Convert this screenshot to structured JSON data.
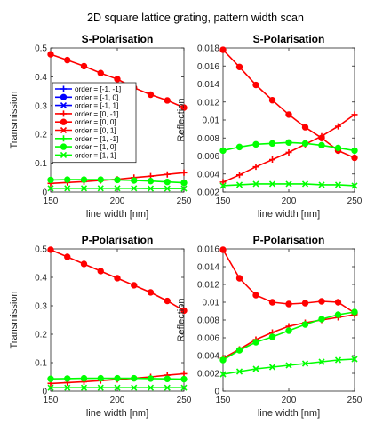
{
  "figure": {
    "suptitle": "2D square lattice grating, pattern width scan"
  },
  "legend": {
    "entries": [
      {
        "label": "order = [-1, -1]",
        "color": "#0000ff",
        "marker": "plus"
      },
      {
        "label": "order = [-1, 0]",
        "color": "#0000ff",
        "marker": "circle"
      },
      {
        "label": "order = [-1, 1]",
        "color": "#0000ff",
        "marker": "x"
      },
      {
        "label": "order = [0, -1]",
        "color": "#ff0000",
        "marker": "plus"
      },
      {
        "label": "order = [0, 0]",
        "color": "#ff0000",
        "marker": "circle"
      },
      {
        "label": "order = [0, 1]",
        "color": "#ff0000",
        "marker": "x"
      },
      {
        "label": "order = [1, -1]",
        "color": "#00ff00",
        "marker": "plus"
      },
      {
        "label": "order = [1, 0]",
        "color": "#00ff00",
        "marker": "circle"
      },
      {
        "label": "order = [1, 1]",
        "color": "#00ff00",
        "marker": "x"
      }
    ]
  },
  "chart_data": [
    {
      "type": "line",
      "title": "S-Polarisation",
      "xlabel": "line width [nm]",
      "ylabel": "Transmission",
      "xlim": [
        150,
        250
      ],
      "ylim": [
        0,
        0.5
      ],
      "xticks": [
        "150",
        "200",
        "250"
      ],
      "yticks": [
        "0",
        "0.1",
        "0.2",
        "0.3",
        "0.4",
        "0.5"
      ],
      "grid": false,
      "legend_position": "upper-left",
      "x": [
        150,
        162.5,
        175,
        187.5,
        200,
        212.5,
        225,
        237.5,
        250
      ],
      "series": [
        {
          "color": "#ff0000",
          "marker": "circle",
          "values": [
            0.478,
            0.458,
            0.437,
            0.413,
            0.392,
            0.362,
            0.338,
            0.318,
            0.293
          ]
        },
        {
          "color": "#ff0000",
          "marker": "plus",
          "values": [
            0.03,
            0.033,
            0.036,
            0.04,
            0.044,
            0.05,
            0.055,
            0.061,
            0.067
          ]
        },
        {
          "color": "#00ff00",
          "marker": "circle",
          "values": [
            0.042,
            0.043,
            0.043,
            0.043,
            0.042,
            0.04,
            0.038,
            0.035,
            0.032
          ]
        },
        {
          "color": "#00ff00",
          "marker": "x",
          "values": [
            0.013,
            0.013,
            0.013,
            0.013,
            0.013,
            0.013,
            0.012,
            0.012,
            0.012
          ]
        }
      ]
    },
    {
      "type": "line",
      "title": "S-Polarisation",
      "xlabel": "line width [nm]",
      "ylabel": "Reflection",
      "xlim": [
        150,
        250
      ],
      "ylim": [
        0.002,
        0.018
      ],
      "xticks": [
        "150",
        "200",
        "250"
      ],
      "yticks": [
        "0.002",
        "0.004",
        "0.006",
        "0.008",
        "0.01",
        "0.012",
        "0.014",
        "0.016",
        "0.018"
      ],
      "grid": false,
      "x": [
        150,
        162.5,
        175,
        187.5,
        200,
        212.5,
        225,
        237.5,
        250
      ],
      "series": [
        {
          "color": "#ff0000",
          "marker": "circle",
          "values": [
            0.0178,
            0.0159,
            0.0139,
            0.0122,
            0.0106,
            0.0092,
            0.008,
            0.0066,
            0.0058
          ]
        },
        {
          "color": "#ff0000",
          "marker": "plus",
          "values": [
            0.0031,
            0.0039,
            0.0048,
            0.0056,
            0.0064,
            0.0073,
            0.0082,
            0.0093,
            0.0106
          ]
        },
        {
          "color": "#00ff00",
          "marker": "circle",
          "values": [
            0.0066,
            0.007,
            0.0073,
            0.0074,
            0.0075,
            0.0074,
            0.0072,
            0.0069,
            0.0066
          ]
        },
        {
          "color": "#00ff00",
          "marker": "x",
          "values": [
            0.0027,
            0.0028,
            0.0029,
            0.0029,
            0.0029,
            0.0029,
            0.0028,
            0.0028,
            0.0027
          ]
        }
      ]
    },
    {
      "type": "line",
      "title": "P-Polarisation",
      "xlabel": "line width [nm]",
      "ylabel": "Transmission",
      "xlim": [
        150,
        250
      ],
      "ylim": [
        0,
        0.5
      ],
      "xticks": [
        "150",
        "200",
        "250"
      ],
      "yticks": [
        "0",
        "0.1",
        "0.2",
        "0.3",
        "0.4",
        "0.5"
      ],
      "grid": false,
      "x": [
        150,
        162.5,
        175,
        187.5,
        200,
        212.5,
        225,
        237.5,
        250
      ],
      "series": [
        {
          "color": "#ff0000",
          "marker": "circle",
          "values": [
            0.497,
            0.472,
            0.447,
            0.422,
            0.397,
            0.372,
            0.347,
            0.317,
            0.283
          ]
        },
        {
          "color": "#ff0000",
          "marker": "plus",
          "values": [
            0.027,
            0.03,
            0.033,
            0.037,
            0.041,
            0.045,
            0.05,
            0.056,
            0.061
          ]
        },
        {
          "color": "#00ff00",
          "marker": "circle",
          "values": [
            0.043,
            0.044,
            0.045,
            0.045,
            0.045,
            0.045,
            0.044,
            0.043,
            0.042
          ]
        },
        {
          "color": "#00ff00",
          "marker": "x",
          "values": [
            0.012,
            0.012,
            0.012,
            0.012,
            0.012,
            0.012,
            0.012,
            0.012,
            0.012
          ]
        }
      ]
    },
    {
      "type": "line",
      "title": "P-Polarisation",
      "xlabel": "line width [nm]",
      "ylabel": "Reflection",
      "xlim": [
        150,
        250
      ],
      "ylim": [
        0,
        0.016
      ],
      "xticks": [
        "150",
        "200",
        "250"
      ],
      "yticks": [
        "0",
        "0.002",
        "0.004",
        "0.006",
        "0.008",
        "0.01",
        "0.012",
        "0.014",
        "0.016"
      ],
      "grid": false,
      "x": [
        150,
        162.5,
        175,
        187.5,
        200,
        212.5,
        225,
        237.5,
        250
      ],
      "series": [
        {
          "color": "#ff0000",
          "marker": "circle",
          "values": [
            0.0159,
            0.0127,
            0.0108,
            0.01,
            0.0098,
            0.0099,
            0.0101,
            0.01,
            0.0088
          ]
        },
        {
          "color": "#ff0000",
          "marker": "plus",
          "values": [
            0.0037,
            0.0047,
            0.0058,
            0.0066,
            0.0073,
            0.0077,
            0.008,
            0.0083,
            0.0086
          ]
        },
        {
          "color": "#00ff00",
          "marker": "circle",
          "values": [
            0.0035,
            0.0046,
            0.0055,
            0.0061,
            0.0068,
            0.0075,
            0.0081,
            0.0086,
            0.0089
          ]
        },
        {
          "color": "#00ff00",
          "marker": "x",
          "values": [
            0.0019,
            0.0022,
            0.0025,
            0.0027,
            0.0029,
            0.0031,
            0.0033,
            0.0035,
            0.0036
          ]
        }
      ]
    }
  ]
}
